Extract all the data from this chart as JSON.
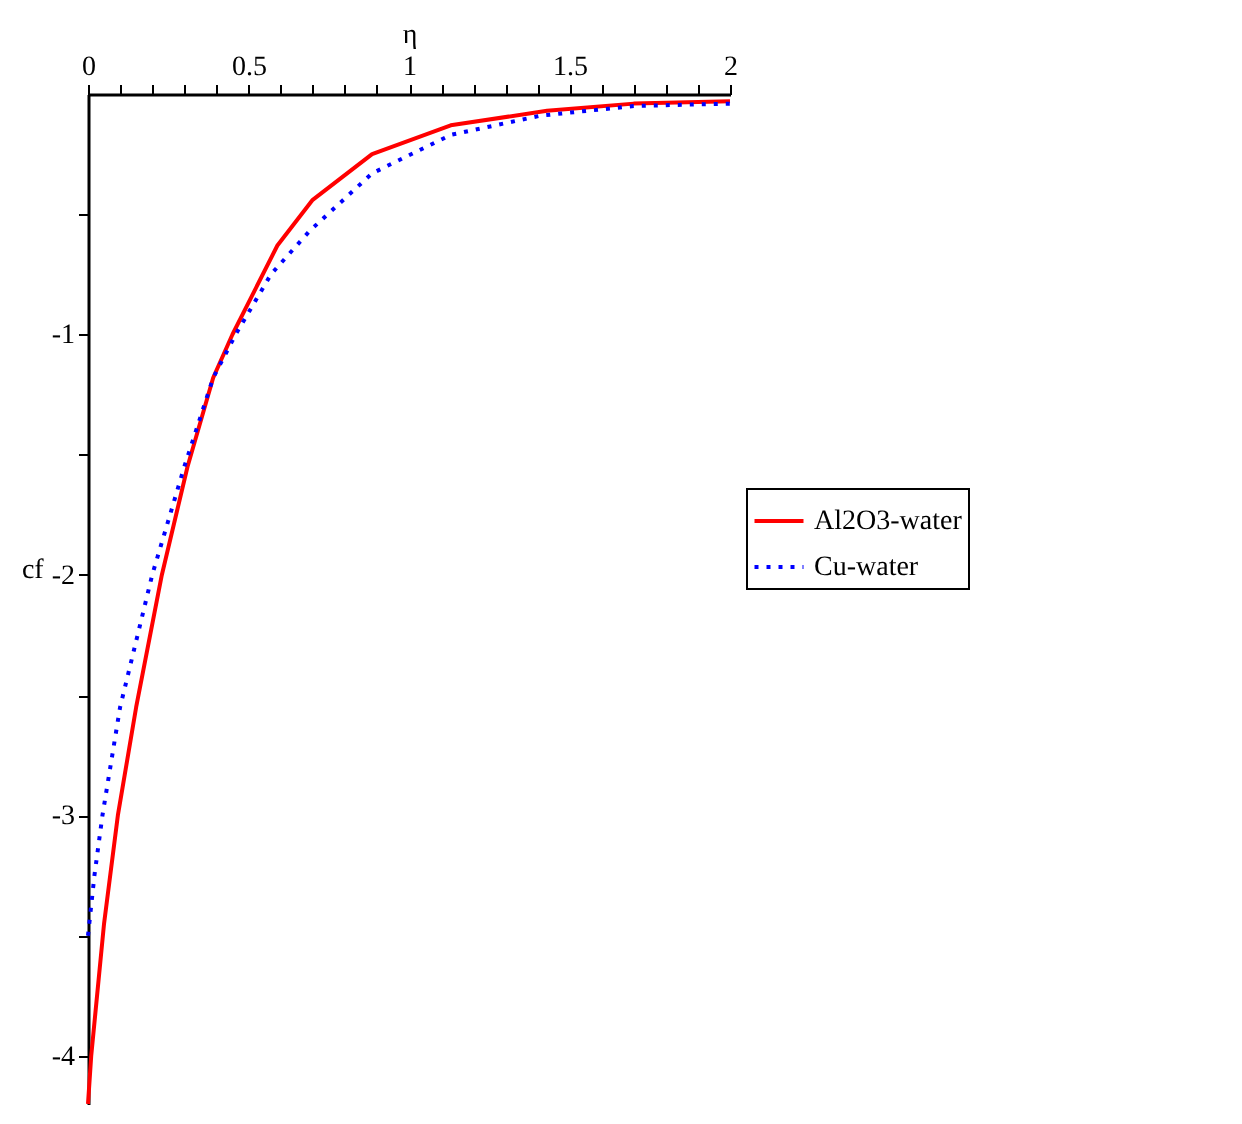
{
  "chart_data": {
    "type": "line",
    "xlabel": "η",
    "ylabel": "cf",
    "legend": "right",
    "grid": false,
    "xlim": [
      0,
      2
    ],
    "ylim": [
      -4.2,
      0
    ],
    "xticks": [
      0,
      {
        "value": 0.1,
        "label": null
      },
      {
        "value": 0.2,
        "label": null
      },
      {
        "value": 0.3,
        "label": null
      },
      {
        "value": 0.4,
        "label": null
      },
      0.5,
      {
        "value": 0.6,
        "label": null
      },
      {
        "value": 0.7,
        "label": null
      },
      {
        "value": 0.8,
        "label": null
      },
      {
        "value": 0.9,
        "label": null
      },
      1,
      {
        "value": 1.1,
        "label": null
      },
      {
        "value": 1.2,
        "label": null
      },
      {
        "value": 1.3,
        "label": null
      },
      {
        "value": 1.4,
        "label": null
      },
      1.5,
      {
        "value": 1.6,
        "label": null
      },
      {
        "value": 1.7,
        "label": null
      },
      {
        "value": 1.8,
        "label": null
      },
      {
        "value": 1.9,
        "label": null
      },
      2
    ],
    "yticks": [
      {
        "value": -0.5,
        "label": null
      },
      -1,
      {
        "value": -1.5,
        "label": null
      },
      -2,
      {
        "value": -2.5,
        "label": null
      },
      -3,
      {
        "value": -3.5,
        "label": null
      },
      -4
    ],
    "series": [
      {
        "name": "Al2O3-water",
        "color": "#ff0000",
        "line_style": "solid",
        "x": [
          0,
          0.01,
          0.05,
          0.093,
          0.15,
          0.23,
          0.31,
          0.39,
          0.45,
          0.59,
          0.7,
          0.885,
          1.13,
          1.43,
          1.7,
          2
        ],
        "values": [
          -4.2,
          -4.0,
          -3.45,
          -3.0,
          -2.55,
          -2.0,
          -1.55,
          -1.18,
          -1.0,
          -0.63,
          -0.44,
          -0.25,
          -0.13,
          -0.07,
          -0.04,
          -0.03
        ]
      },
      {
        "name": "Cu-water",
        "color": "#0000ff",
        "line_style": "dotted",
        "x": [
          0,
          0.02,
          0.045,
          0.1,
          0.2,
          0.3,
          0.39,
          0.46,
          0.57,
          0.69,
          0.885,
          1.13,
          1.41,
          1.7,
          2
        ],
        "values": [
          -3.5,
          -3.25,
          -3.0,
          -2.55,
          -2.0,
          -1.55,
          -1.18,
          -1.0,
          -0.75,
          -0.57,
          -0.33,
          -0.17,
          -0.09,
          -0.05,
          -0.04
        ]
      }
    ]
  }
}
